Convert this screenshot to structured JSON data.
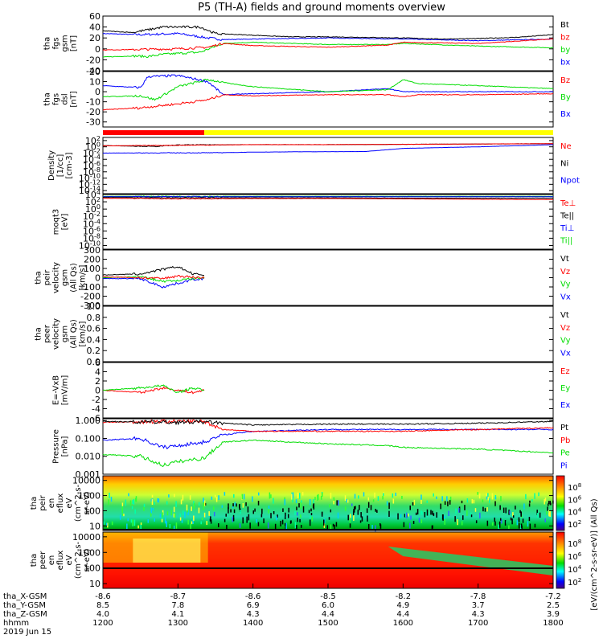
{
  "title": "P5 (TH-A) fields and ground moments overview",
  "colors": {
    "black": "#000000",
    "red": "#ff0000",
    "green": "#00dd00",
    "blue": "#0000ff",
    "yellow": "#ffff00"
  },
  "x_axis": {
    "xlim": [
      1200,
      1800
    ],
    "rows": [
      {
        "label": "tha_X-GSM",
        "values": [
          "-8.6",
          "-8.7",
          "-8.6",
          "-8.5",
          "-8.2",
          "-7.8",
          "-7.2"
        ]
      },
      {
        "label": "tha_Y-GSM",
        "values": [
          "8.5",
          "7.8",
          "6.9",
          "6.0",
          "4.9",
          "3.7",
          "2.5"
        ]
      },
      {
        "label": "tha_Z-GSM",
        "values": [
          "4.0",
          "4.1",
          "4.3",
          "4.4",
          "4.4",
          "4.3",
          "3.9"
        ]
      },
      {
        "label": "hhmm",
        "values": [
          "1200",
          "1300",
          "1400",
          "1500",
          "1600",
          "1700",
          "1800"
        ]
      }
    ],
    "date": "2019 Jun 15"
  },
  "chart_data": [
    {
      "type": "line",
      "ylabel": [
        "tha",
        "fgs",
        "gsm",
        "[nT]"
      ],
      "ylim": [
        -40,
        60
      ],
      "ticks": [
        "60",
        "40",
        "20",
        "0",
        "-20",
        "-40"
      ],
      "legend": [
        {
          "name": "Bt",
          "color": "#000000"
        },
        {
          "name": "bz",
          "color": "#ff0000"
        },
        {
          "name": "by",
          "color": "#00dd00"
        },
        {
          "name": "bx",
          "color": "#0000ff"
        }
      ],
      "series": [
        {
          "name": "Bt",
          "x": [
            1200,
            1240,
            1260,
            1280,
            1330,
            1350,
            1400,
            1450,
            1500,
            1550,
            1600,
            1650,
            1700,
            1750,
            1800
          ],
          "y": [
            33,
            30,
            35,
            40,
            40,
            28,
            25,
            22,
            22,
            21,
            20,
            18,
            19,
            21,
            26
          ]
        },
        {
          "name": "bz",
          "x": [
            1200,
            1300,
            1340,
            1360,
            1400,
            1500,
            1580,
            1600,
            1700,
            1800
          ],
          "y": [
            -2,
            0,
            3,
            10,
            6,
            3,
            7,
            12,
            10,
            18
          ]
        },
        {
          "name": "by",
          "x": [
            1200,
            1240,
            1260,
            1280,
            1330,
            1360,
            1400,
            1500,
            1580,
            1600,
            1700,
            1800
          ],
          "y": [
            -15,
            -13,
            -14,
            -10,
            -6,
            10,
            12,
            8,
            8,
            10,
            5,
            2
          ]
        },
        {
          "name": "bx",
          "x": [
            1200,
            1250,
            1300,
            1340,
            1360,
            1400,
            1500,
            1600,
            1700,
            1800
          ],
          "y": [
            28,
            26,
            28,
            20,
            17,
            18,
            20,
            18,
            15,
            18
          ]
        }
      ]
    },
    {
      "type": "line",
      "ylabel": [
        "tha",
        "fgs",
        "dsl",
        "[nT]"
      ],
      "ylim": [
        -35,
        20
      ],
      "ticks": [
        "20",
        "10",
        "0",
        "-10",
        "-20",
        "-30"
      ],
      "legend": [
        {
          "name": "Bz",
          "color": "#ff0000"
        },
        {
          "name": "By",
          "color": "#00dd00"
        },
        {
          "name": "Bx",
          "color": "#0000ff"
        }
      ],
      "series": [
        {
          "name": "Bz",
          "x": [
            1200,
            1250,
            1300,
            1340,
            1360,
            1400,
            1500,
            1580,
            1600,
            1620,
            1700,
            1800
          ],
          "y": [
            -18,
            -16,
            -12,
            -8,
            -3,
            -4,
            -3,
            -3,
            -5,
            -3,
            -3,
            -2
          ]
        },
        {
          "name": "By",
          "x": [
            1200,
            1250,
            1270,
            1300,
            1340,
            1370,
            1400,
            1500,
            1580,
            1600,
            1620,
            1700,
            1800
          ],
          "y": [
            -5,
            -4,
            -8,
            5,
            12,
            8,
            5,
            0,
            2,
            12,
            8,
            6,
            3
          ]
        },
        {
          "name": "Bx",
          "x": [
            1200,
            1250,
            1260,
            1300,
            1340,
            1360,
            1400,
            1500,
            1580,
            1600,
            1700,
            1800
          ],
          "y": [
            6,
            4,
            15,
            16,
            10,
            -3,
            -2,
            0,
            3,
            0,
            0,
            0
          ]
        }
      ]
    },
    {
      "type": "bar",
      "description": "mode bar",
      "segments": [
        {
          "from": 1200,
          "to": 1335,
          "color": "#ff0000"
        },
        {
          "from": 1335,
          "to": 1800,
          "color": "#ffff00"
        }
      ]
    },
    {
      "type": "line",
      "ylabel": [
        "Density",
        "[1/cc]",
        "[cm-3]"
      ],
      "scale": "log",
      "ylim_exp": [
        -15,
        3
      ],
      "ticks": [
        "10^2",
        "10^0",
        "10^-2",
        "10^-4",
        "10^-6",
        "10^-8",
        "10^-10",
        "10^-12",
        "10^-14"
      ],
      "legend": [
        {
          "name": "Ne",
          "color": "#ff0000"
        },
        {
          "name": "Ni",
          "color": "#000000"
        },
        {
          "name": "Npot",
          "color": "#0000ff"
        }
      ],
      "series": [
        {
          "name": "Ne",
          "x": [
            1200,
            1300,
            1400,
            1500,
            1600,
            1700,
            1800
          ],
          "y_exp": [
            0.3,
            0.5,
            0.7,
            0.7,
            0.8,
            0.9,
            1.0
          ]
        },
        {
          "name": "Ni",
          "x": [
            1200,
            1270,
            1300,
            1400,
            1500,
            1600,
            1700,
            1800
          ],
          "y_exp": [
            0.4,
            0.1,
            0.6,
            0.7,
            0.7,
            0.8,
            0.9,
            1.0
          ]
        },
        {
          "name": "Npot",
          "x": [
            1200,
            1350,
            1400,
            1450,
            1550,
            1600,
            1700,
            1800
          ],
          "y_exp": [
            -2,
            -1.9,
            -1.7,
            -1.6,
            -1.5,
            -0.5,
            0,
            0.7
          ]
        }
      ]
    },
    {
      "type": "line",
      "ylabel": [
        "moqt3",
        "[eV]"
      ],
      "scale": "log",
      "ylim_exp": [
        -11,
        4
      ],
      "ticks": [
        "10^4",
        "10^2",
        "10^0",
        "10^-2",
        "10^-4",
        "10^-6",
        "10^-8",
        "10^-10"
      ],
      "legend": [
        {
          "name": "Te⊥",
          "color": "#ff0000"
        },
        {
          "name": "Te||",
          "color": "#000000"
        },
        {
          "name": "Ti⊥",
          "color": "#0000ff"
        },
        {
          "name": "Ti||",
          "color": "#00dd00"
        }
      ],
      "series": [
        {
          "name": "Te⊥",
          "x": [
            1200,
            1300,
            1400,
            1500,
            1600,
            1700,
            1800
          ],
          "y_exp": [
            3.0,
            2.8,
            2.9,
            2.9,
            2.8,
            2.7,
            2.6
          ]
        },
        {
          "name": "Te||",
          "x": [
            1200,
            1300,
            1400,
            1500,
            1600,
            1700,
            1800
          ],
          "y_exp": [
            3.2,
            3.1,
            3.1,
            3.1,
            3.0,
            3.0,
            3.0
          ]
        },
        {
          "name": "Ti⊥",
          "x": [
            1200,
            1300,
            1400,
            1500,
            1600,
            1700,
            1800
          ],
          "y_exp": [
            3.4,
            3.4,
            3.4,
            3.4,
            3.4,
            3.4,
            3.4
          ]
        },
        {
          "name": "Ti||",
          "x": [
            1200,
            1300,
            1400,
            1500,
            1600,
            1700,
            1800
          ],
          "y_exp": [
            3.5,
            3.5,
            3.5,
            3.5,
            3.5,
            3.5,
            3.5
          ]
        }
      ]
    },
    {
      "type": "line",
      "ylabel": [
        "tha",
        "peir",
        "velocity",
        "gsm",
        "(All Qs)",
        "[km/s]"
      ],
      "ylim": [
        -300,
        300
      ],
      "ticks": [
        "300",
        "200",
        "100",
        "0",
        "-100",
        "-200",
        "-300"
      ],
      "legend": [
        {
          "name": "Vt",
          "color": "#000000"
        },
        {
          "name": "Vz",
          "color": "#ff0000"
        },
        {
          "name": "Vy",
          "color": "#00dd00"
        },
        {
          "name": "Vx",
          "color": "#0000ff"
        }
      ],
      "series": [
        {
          "name": "Vt",
          "x": [
            1200,
            1250,
            1280,
            1300,
            1320,
            1335
          ],
          "y": [
            30,
            40,
            90,
            120,
            40,
            30
          ]
        },
        {
          "name": "Vz",
          "x": [
            1200,
            1250,
            1280,
            1300,
            1320,
            1335
          ],
          "y": [
            10,
            0,
            -10,
            20,
            5,
            0
          ]
        },
        {
          "name": "Vy",
          "x": [
            1200,
            1250,
            1280,
            1300,
            1320,
            1335
          ],
          "y": [
            0,
            10,
            -40,
            -30,
            -10,
            0
          ]
        },
        {
          "name": "Vx",
          "x": [
            1200,
            1250,
            1280,
            1300,
            1320,
            1335
          ],
          "y": [
            -10,
            -10,
            -100,
            -60,
            -20,
            -10
          ]
        }
      ]
    },
    {
      "type": "line",
      "ylabel": [
        "tha",
        "peer",
        "velocity",
        "gsm",
        "(All Qs)",
        "[km/s]"
      ],
      "ylim": [
        0,
        1
      ],
      "ticks": [
        "1.0",
        "0.8",
        "0.6",
        "0.4",
        "0.2",
        "0.0"
      ],
      "legend": [
        {
          "name": "Vt",
          "color": "#000000"
        },
        {
          "name": "Vz",
          "color": "#ff0000"
        },
        {
          "name": "Vy",
          "color": "#00dd00"
        },
        {
          "name": "Vx",
          "color": "#0000ff"
        }
      ],
      "series": []
    },
    {
      "type": "line",
      "ylabel": [
        "E=-VxB",
        "[mV/m]"
      ],
      "ylim": [
        -6,
        6
      ],
      "ticks": [
        "6",
        "4",
        "2",
        "0",
        "-2",
        "-4",
        "-6"
      ],
      "legend": [
        {
          "name": "Ez",
          "color": "#ff0000"
        },
        {
          "name": "Ey",
          "color": "#00dd00"
        },
        {
          "name": "Ex",
          "color": "#0000ff"
        }
      ],
      "series": [
        {
          "name": "Ey",
          "x": [
            1200,
            1250,
            1280,
            1300,
            1320,
            1335
          ],
          "y": [
            0,
            0.5,
            1,
            -0.5,
            0.5,
            0
          ]
        },
        {
          "name": "Ez",
          "x": [
            1200,
            1250,
            1280,
            1300,
            1320,
            1335
          ],
          "y": [
            0,
            -0.5,
            0.5,
            0,
            -0.5,
            0
          ]
        }
      ]
    },
    {
      "type": "line",
      "ylabel": [
        "Pressure",
        "[nPa]"
      ],
      "scale": "log",
      "ylim_exp": [
        -3,
        0.1
      ],
      "ticks": [
        "1.000",
        "0.100",
        "0.010",
        "0.001"
      ],
      "legend": [
        {
          "name": "Pt",
          "color": "#000000"
        },
        {
          "name": "Pb",
          "color": "#ff0000"
        },
        {
          "name": "Pe",
          "color": "#00dd00"
        },
        {
          "name": "Pi",
          "color": "#0000ff"
        }
      ],
      "series": [
        {
          "name": "Pt",
          "x": [
            1200,
            1300,
            1335,
            1400,
            1500,
            1600,
            1700,
            1800
          ],
          "y_exp": [
            -0.05,
            -0.1,
            -0.08,
            -0.25,
            -0.2,
            -0.2,
            -0.15,
            -0.05
          ]
        },
        {
          "name": "Pb",
          "x": [
            1200,
            1280,
            1335,
            1360,
            1400,
            1500,
            1600,
            1700,
            1800
          ],
          "y_exp": [
            -0.1,
            -0.05,
            -0.05,
            -0.5,
            -0.6,
            -0.6,
            -0.6,
            -0.5,
            -0.4
          ]
        },
        {
          "name": "Pe",
          "x": [
            1200,
            1250,
            1280,
            1300,
            1335,
            1360,
            1400,
            1500,
            1580,
            1600,
            1700,
            1800
          ],
          "y_exp": [
            -1.9,
            -2.0,
            -2.5,
            -2.3,
            -2.1,
            -1.2,
            -1.1,
            -1.3,
            -1.4,
            -1.5,
            -1.6,
            -1.8
          ]
        },
        {
          "name": "Pi",
          "x": [
            1200,
            1250,
            1280,
            1300,
            1335,
            1360,
            1400,
            1500,
            1600,
            1700,
            1800
          ],
          "y_exp": [
            -1.1,
            -1.0,
            -1.5,
            -1.4,
            -1.2,
            -0.8,
            -0.6,
            -0.5,
            -0.5,
            -0.5,
            -0.5
          ]
        }
      ]
    },
    {
      "type": "heatmap",
      "ylabel": [
        "tha",
        "peir",
        "en",
        "eflux",
        "eV",
        "(cm^2-s-",
        "sr-eV)"
      ],
      "scale": "log",
      "ylim": [
        5,
        20000
      ],
      "ticks": [
        "10000",
        "1000",
        "100",
        "10"
      ],
      "colorbar_ticks": [
        "10^8",
        "10^6",
        "10^4",
        "10^2"
      ],
      "colorbar_label": "[eV/(cm^2-s-sr-eV)] (All Qs)"
    },
    {
      "type": "heatmap",
      "ylabel": [
        "tha",
        "peer",
        "en",
        "eflux",
        "eV",
        "(cm^2-s-",
        "sr-eV)"
      ],
      "scale": "log",
      "ylim": [
        5,
        20000
      ],
      "ticks": [
        "10000",
        "1000",
        "100",
        "10"
      ],
      "colorbar_ticks": [
        "10^8",
        "10^6",
        "10^4",
        "10^2"
      ],
      "colorbar_label": "[eV/(cm^2-s-sr-eV)] (All Qs)"
    }
  ]
}
